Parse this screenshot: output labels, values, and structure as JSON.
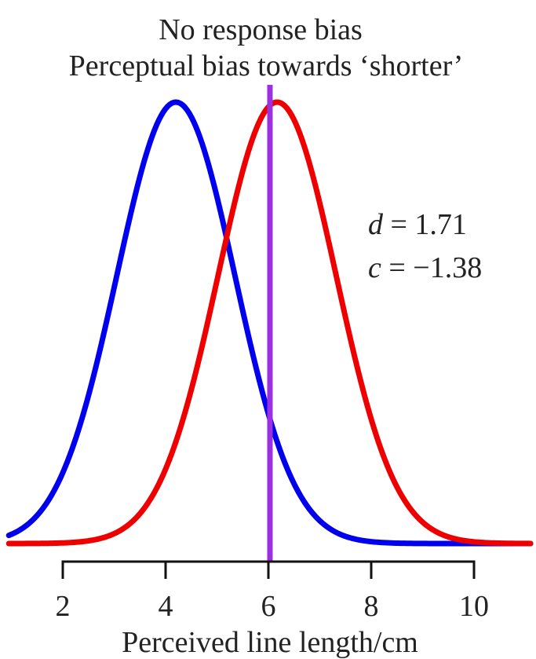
{
  "chart_data": {
    "type": "line",
    "title": "No response bias",
    "subtitle": "Perceptual bias towards ‘shorter’",
    "xlabel": "Perceived line length/cm",
    "ylabel": "",
    "xlim": [
      0.95,
      11.1
    ],
    "ylim": [
      0,
      1.02
    ],
    "xticks": [
      2,
      4,
      6,
      8,
      10
    ],
    "xtick_labels": [
      "2",
      "4",
      "6",
      "8",
      "10"
    ],
    "grid": false,
    "series": [
      {
        "color": "#0000ee",
        "distribution": "normal",
        "mean": 4.2,
        "sd": 1.15
      },
      {
        "color": "#ee0000",
        "distribution": "normal",
        "mean": 6.17,
        "sd": 1.15
      }
    ],
    "vline": {
      "x": 6.03,
      "color": "#9b30e0"
    },
    "annotations": {
      "d_symbol": "d",
      "d_text": " = 1.71",
      "c_symbol": "c",
      "c_text": " = −1.38"
    }
  }
}
